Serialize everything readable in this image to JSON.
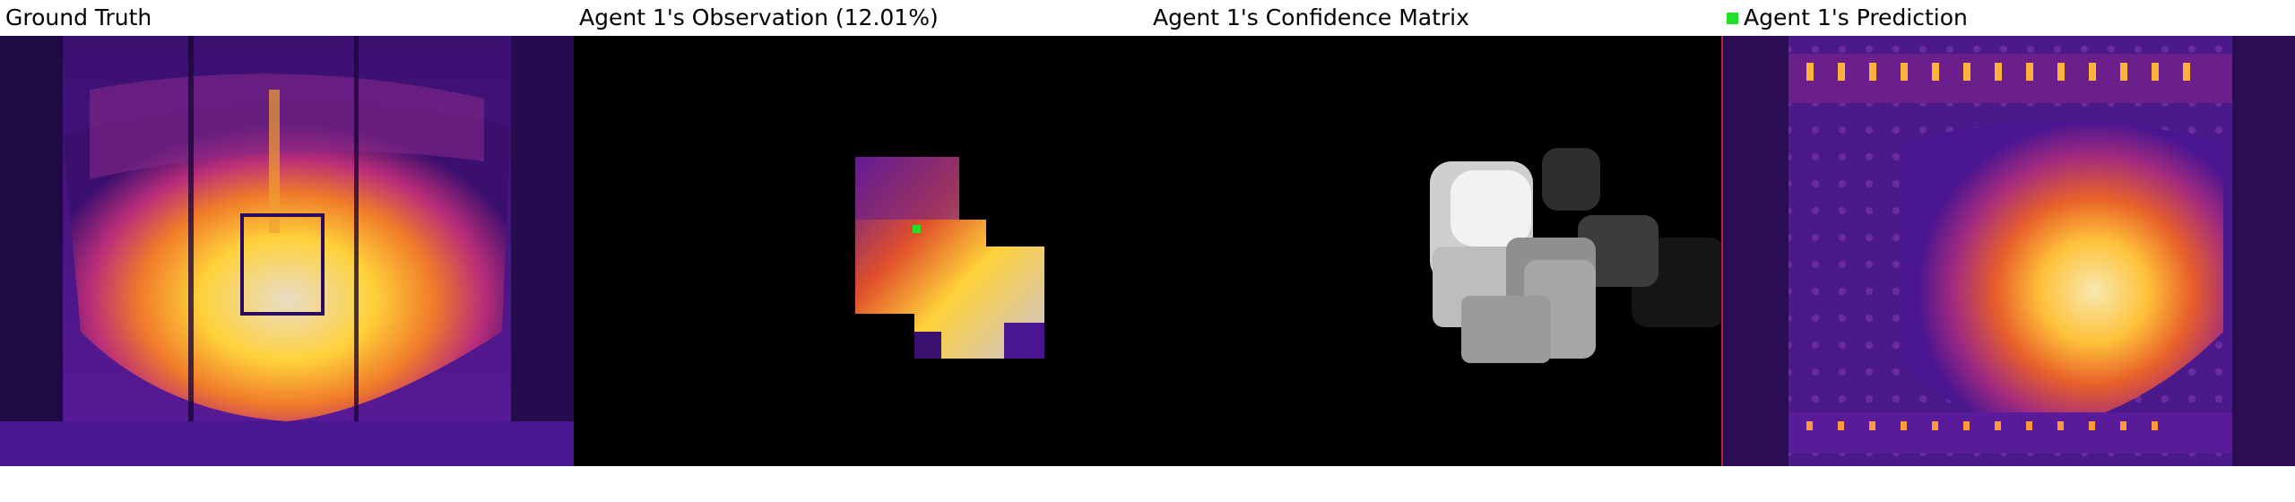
{
  "panels": [
    {
      "id": "ground-truth",
      "title": "Ground Truth"
    },
    {
      "id": "observation",
      "title": "Agent 1's Observation (12.01%)"
    },
    {
      "id": "confidence",
      "title": "Agent 1's Confidence Matrix"
    },
    {
      "id": "prediction",
      "title": "Agent 1's Prediction"
    }
  ],
  "colors": {
    "marker": "#22e02a",
    "thermal_dark": "#2a0a5e",
    "thermal_mid": "#c2307a",
    "thermal_hot": "#ffd23a",
    "thermal_white": "#c9c2d6"
  },
  "icons": {
    "agent_marker": "green-square-marker"
  }
}
